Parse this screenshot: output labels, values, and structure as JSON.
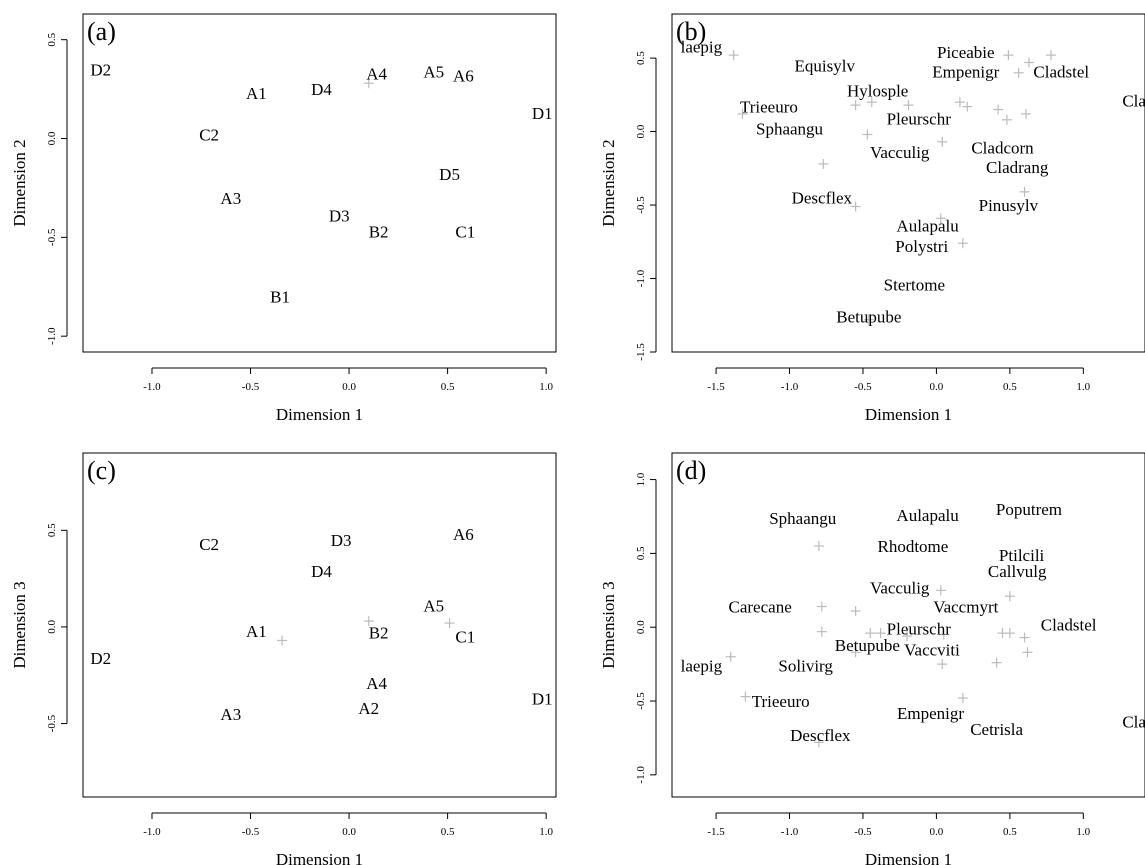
{
  "colors": {
    "text": "#000000",
    "marker": "#bbbbbb"
  },
  "chart_data": [
    {
      "panel": "(a)",
      "type": "scatter",
      "xlabel": "Dimension 1",
      "ylabel": "Dimension 2",
      "xlim": [
        -1.35,
        1.05
      ],
      "ylim": [
        -1.08,
        0.63
      ],
      "xticks": [
        -1.0,
        -0.5,
        0.0,
        0.5,
        1.0
      ],
      "xtick_labels": [
        "-1.0",
        "-0.5",
        "0.0",
        "0.5",
        "1.0"
      ],
      "yticks": [
        -1.0,
        -0.5,
        0.0,
        0.5
      ],
      "ytick_labels": [
        "-1.0",
        "-0.5",
        "0.0",
        "0.5"
      ],
      "points": [
        {
          "label": "D2",
          "x": -1.26,
          "y": 0.35
        },
        {
          "label": "A1",
          "x": -0.47,
          "y": 0.23
        },
        {
          "label": "D4",
          "x": -0.14,
          "y": 0.25
        },
        {
          "label": "A4",
          "x": 0.14,
          "y": 0.33
        },
        {
          "label": "A5",
          "x": 0.43,
          "y": 0.34
        },
        {
          "label": "A6",
          "x": 0.58,
          "y": 0.32
        },
        {
          "label": "D1",
          "x": 0.98,
          "y": 0.13
        },
        {
          "label": "C2",
          "x": -0.71,
          "y": 0.02
        },
        {
          "label": "D5",
          "x": 0.51,
          "y": -0.18
        },
        {
          "label": "A3",
          "x": -0.6,
          "y": -0.3
        },
        {
          "label": "D3",
          "x": -0.05,
          "y": -0.39
        },
        {
          "label": "B2",
          "x": 0.15,
          "y": -0.47
        },
        {
          "label": "C1",
          "x": 0.59,
          "y": -0.47
        },
        {
          "label": "B1",
          "x": -0.35,
          "y": -0.8
        }
      ],
      "markers": [
        {
          "x": 0.1,
          "y": 0.28
        }
      ]
    },
    {
      "panel": "(b)",
      "type": "scatter",
      "xlabel": "Dimension 1",
      "ylabel": "Dimension 2",
      "xlim": [
        -1.8,
        1.42
      ],
      "ylim": [
        -1.5,
        0.8
      ],
      "xticks": [
        -1.5,
        -1.0,
        -0.5,
        0.0,
        0.5,
        1.0
      ],
      "xtick_labels": [
        "-1.5",
        "-1.0",
        "-0.5",
        "0.0",
        "0.5",
        "1.0"
      ],
      "yticks": [
        -1.5,
        -1.0,
        -0.5,
        0.0,
        0.5
      ],
      "ytick_labels": [
        "-1.5",
        "-1.0",
        "-0.5",
        "0.0",
        "0.5"
      ],
      "points": [
        {
          "label": "laepig",
          "x": -1.6,
          "y": 0.58
        },
        {
          "label": "Equisylv",
          "x": -0.76,
          "y": 0.45
        },
        {
          "label": "Piceabie",
          "x": 0.2,
          "y": 0.54
        },
        {
          "label": "Empenigr",
          "x": 0.2,
          "y": 0.41
        },
        {
          "label": "Cladstel",
          "x": 0.85,
          "y": 0.41
        },
        {
          "label": "Hylosple",
          "x": -0.4,
          "y": 0.28
        },
        {
          "label": "Cladcr",
          "x": 1.42,
          "y": 0.21
        },
        {
          "label": "Trieeuro",
          "x": -1.14,
          "y": 0.17
        },
        {
          "label": "Sphaangu",
          "x": -1.0,
          "y": 0.02
        },
        {
          "label": "Pleurschr",
          "x": -0.12,
          "y": 0.09
        },
        {
          "label": "Cladcorn",
          "x": 0.45,
          "y": -0.11
        },
        {
          "label": "Vacculig",
          "x": -0.25,
          "y": -0.14
        },
        {
          "label": "Cladrang",
          "x": 0.55,
          "y": -0.24
        },
        {
          "label": "Descflex",
          "x": -0.78,
          "y": -0.45
        },
        {
          "label": "Pinusylv",
          "x": 0.49,
          "y": -0.5
        },
        {
          "label": "Aulapalu",
          "x": -0.06,
          "y": -0.64
        },
        {
          "label": "Polystri",
          "x": -0.1,
          "y": -0.78
        },
        {
          "label": "Stertome",
          "x": -0.15,
          "y": -1.04
        },
        {
          "label": "Betupube",
          "x": -0.46,
          "y": -1.26
        }
      ],
      "markers": [
        {
          "x": -1.38,
          "y": 0.52
        },
        {
          "x": 0.49,
          "y": 0.52
        },
        {
          "x": 0.78,
          "y": 0.52
        },
        {
          "x": 0.63,
          "y": 0.47
        },
        {
          "x": 0.56,
          "y": 0.4
        },
        {
          "x": -0.55,
          "y": 0.18
        },
        {
          "x": -0.44,
          "y": 0.2
        },
        {
          "x": -0.19,
          "y": 0.18
        },
        {
          "x": 0.16,
          "y": 0.2
        },
        {
          "x": 0.21,
          "y": 0.17
        },
        {
          "x": 0.42,
          "y": 0.15
        },
        {
          "x": 0.61,
          "y": 0.12
        },
        {
          "x": 0.48,
          "y": 0.08
        },
        {
          "x": -1.32,
          "y": 0.12
        },
        {
          "x": -0.47,
          "y": -0.02
        },
        {
          "x": 0.04,
          "y": -0.07
        },
        {
          "x": -0.77,
          "y": -0.22
        },
        {
          "x": 0.6,
          "y": -0.41
        },
        {
          "x": -0.55,
          "y": -0.51
        },
        {
          "x": 0.03,
          "y": -0.59
        },
        {
          "x": 0.18,
          "y": -0.76
        },
        {
          "x": -0.46,
          "y": -1.28
        }
      ]
    },
    {
      "panel": "(c)",
      "type": "scatter",
      "xlabel": "Dimension 1",
      "ylabel": "Dimension 3",
      "xlim": [
        -1.35,
        1.05
      ],
      "ylim": [
        -0.88,
        0.9
      ],
      "xticks": [
        -1.0,
        -0.5,
        0.0,
        0.5,
        1.0
      ],
      "xtick_labels": [
        "-1.0",
        "-0.5",
        "0.0",
        "0.5",
        "1.0"
      ],
      "yticks": [
        -0.5,
        0.0,
        0.5
      ],
      "ytick_labels": [
        "-0.5",
        "0.0",
        "0.5"
      ],
      "points": [
        {
          "label": "C2",
          "x": -0.71,
          "y": 0.43
        },
        {
          "label": "D3",
          "x": -0.04,
          "y": 0.45
        },
        {
          "label": "A6",
          "x": 0.58,
          "y": 0.48
        },
        {
          "label": "D4",
          "x": -0.14,
          "y": 0.29
        },
        {
          "label": "A5",
          "x": 0.43,
          "y": 0.11
        },
        {
          "label": "A1",
          "x": -0.47,
          "y": -0.02
        },
        {
          "label": "B2",
          "x": 0.15,
          "y": -0.03
        },
        {
          "label": "C1",
          "x": 0.59,
          "y": -0.05
        },
        {
          "label": "D2",
          "x": -1.26,
          "y": -0.16
        },
        {
          "label": "A4",
          "x": 0.14,
          "y": -0.29
        },
        {
          "label": "D1",
          "x": 0.98,
          "y": -0.37
        },
        {
          "label": "A2",
          "x": 0.1,
          "y": -0.42
        },
        {
          "label": "A3",
          "x": -0.6,
          "y": -0.45
        }
      ],
      "markers": [
        {
          "x": 0.1,
          "y": 0.03
        },
        {
          "x": 0.51,
          "y": 0.02
        },
        {
          "x": -0.34,
          "y": -0.07
        }
      ]
    },
    {
      "panel": "(d)",
      "type": "scatter",
      "xlabel": "Dimension 1",
      "ylabel": "Dimension 3",
      "xlim": [
        -1.8,
        1.42
      ],
      "ylim": [
        -1.15,
        1.18
      ],
      "xticks": [
        -1.5,
        -1.0,
        -0.5,
        0.0,
        0.5,
        1.0
      ],
      "xtick_labels": [
        "-1.5",
        "-1.0",
        "-0.5",
        "0.0",
        "0.5",
        "1.0"
      ],
      "yticks": [
        -1.0,
        -0.5,
        0.0,
        0.5,
        1.0
      ],
      "ytick_labels": [
        "-1.0",
        "-0.5",
        "0.0",
        "0.5",
        "1.0"
      ],
      "points": [
        {
          "label": "Poputrem",
          "x": 0.63,
          "y": 0.8
        },
        {
          "label": "Aulapalu",
          "x": -0.06,
          "y": 0.76
        },
        {
          "label": "Sphaangu",
          "x": -0.91,
          "y": 0.74
        },
        {
          "label": "Rhodtome",
          "x": -0.16,
          "y": 0.55
        },
        {
          "label": "Ptilcili",
          "x": 0.58,
          "y": 0.49
        },
        {
          "label": "Callvulg",
          "x": 0.55,
          "y": 0.38
        },
        {
          "label": "Vacculig",
          "x": -0.25,
          "y": 0.27
        },
        {
          "label": "Carecane",
          "x": -1.2,
          "y": 0.14
        },
        {
          "label": "Vaccmyrt",
          "x": 0.2,
          "y": 0.14
        },
        {
          "label": "Cladstel",
          "x": 0.9,
          "y": 0.02
        },
        {
          "label": "Pleurschr",
          "x": -0.12,
          "y": -0.01
        },
        {
          "label": "Betupube",
          "x": -0.47,
          "y": -0.12
        },
        {
          "label": "Vaccviti",
          "x": -0.03,
          "y": -0.15
        },
        {
          "label": "laepig",
          "x": -1.6,
          "y": -0.26
        },
        {
          "label": "Solivirg",
          "x": -0.89,
          "y": -0.26
        },
        {
          "label": "Trieeuro",
          "x": -1.06,
          "y": -0.5
        },
        {
          "label": "Empenigr",
          "x": -0.04,
          "y": -0.58
        },
        {
          "label": "Cetrisla",
          "x": 0.41,
          "y": -0.69
        },
        {
          "label": "Cladcr",
          "x": 1.42,
          "y": -0.64
        },
        {
          "label": "Descflex",
          "x": -0.79,
          "y": -0.73
        }
      ],
      "markers": [
        {
          "x": -0.8,
          "y": 0.55
        },
        {
          "x": -0.78,
          "y": 0.14
        },
        {
          "x": -0.55,
          "y": 0.11
        },
        {
          "x": 0.03,
          "y": 0.25
        },
        {
          "x": 0.5,
          "y": 0.21
        },
        {
          "x": -0.78,
          "y": -0.03
        },
        {
          "x": -0.45,
          "y": -0.04
        },
        {
          "x": -0.38,
          "y": -0.04
        },
        {
          "x": -0.2,
          "y": -0.06
        },
        {
          "x": 0.05,
          "y": -0.05
        },
        {
          "x": 0.45,
          "y": -0.04
        },
        {
          "x": 0.5,
          "y": -0.04
        },
        {
          "x": 0.6,
          "y": -0.07
        },
        {
          "x": -1.4,
          "y": -0.2
        },
        {
          "x": -0.55,
          "y": -0.17
        },
        {
          "x": 0.62,
          "y": -0.17
        },
        {
          "x": 0.04,
          "y": -0.25
        },
        {
          "x": 0.41,
          "y": -0.24
        },
        {
          "x": -1.3,
          "y": -0.47
        },
        {
          "x": 0.18,
          "y": -0.48
        },
        {
          "x": -0.8,
          "y": -0.78
        }
      ]
    }
  ]
}
